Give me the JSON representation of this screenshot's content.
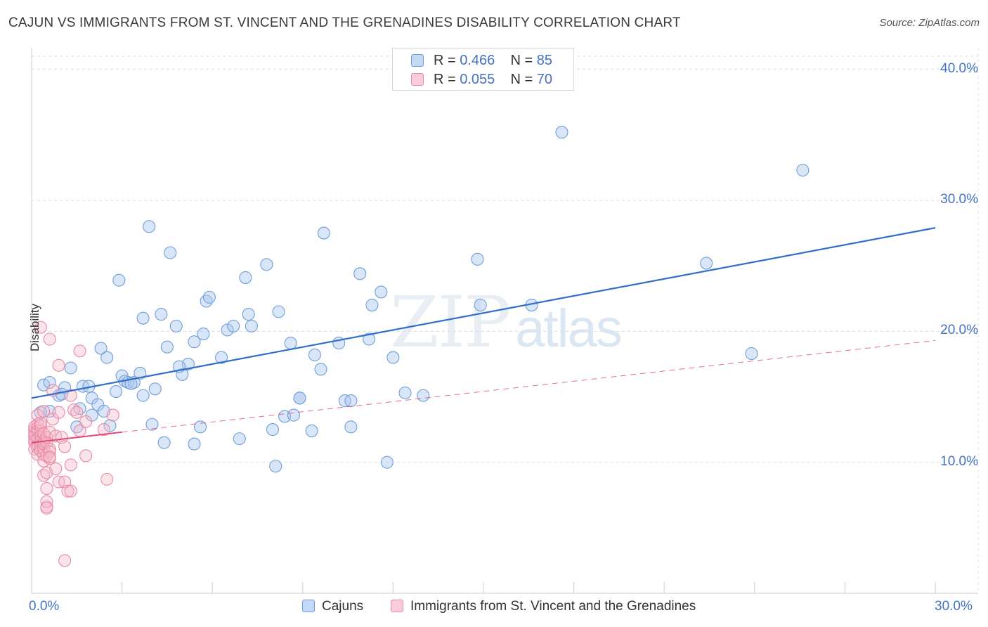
{
  "title": "CAJUN VS IMMIGRANTS FROM ST. VINCENT AND THE GRENADINES DISABILITY CORRELATION CHART",
  "source": "Source: ZipAtlas.com",
  "watermark": {
    "zip": "ZIP",
    "atlas": "atlas"
  },
  "legend": {
    "r_label": "R =",
    "n_label": "N =",
    "rows": [
      {
        "r": "0.466",
        "n": "85"
      },
      {
        "r": "0.055",
        "n": "70"
      }
    ]
  },
  "colors": {
    "cajun_fill": "#aac8f0",
    "cajun_stroke": "#6f9fd8",
    "cajun_line": "#2f6fc9",
    "svg_fill": "#f6b8cb",
    "svg_stroke": "#e88aa8",
    "svg_line": "#e0487a",
    "tick_text": "#4472c4",
    "grid": "#dddddd"
  },
  "chart_data": {
    "type": "scatter",
    "title": "CAJUN VS IMMIGRANTS FROM ST. VINCENT AND THE GRENADINES DISABILITY CORRELATION CHART",
    "xlabel": "",
    "ylabel": "Disability",
    "xlim": [
      0,
      30
    ],
    "ylim": [
      0,
      41
    ],
    "x_ticks": [
      0,
      30
    ],
    "x_tick_labels": [
      "0.0%",
      "30.0%"
    ],
    "y_ticks": [
      10,
      20,
      30,
      40
    ],
    "y_tick_labels": [
      "10.0%",
      "20.0%",
      "30.0%",
      "40.0%"
    ],
    "grid": true,
    "legend_position": "top-center",
    "series": [
      {
        "name": "Cajuns",
        "R": 0.466,
        "N": 85,
        "trend": {
          "x": [
            0,
            30
          ],
          "y": [
            14.9,
            27.9
          ],
          "style": "solid"
        },
        "points": [
          [
            0.4,
            15.9
          ],
          [
            0.6,
            13.9
          ],
          [
            0.6,
            16.1
          ],
          [
            0.9,
            15.1
          ],
          [
            1.1,
            15.7
          ],
          [
            1.3,
            17.2
          ],
          [
            1.5,
            12.7
          ],
          [
            1.6,
            14.1
          ],
          [
            1.7,
            15.8
          ],
          [
            1.9,
            15.8
          ],
          [
            2.0,
            13.6
          ],
          [
            2.0,
            14.9
          ],
          [
            2.2,
            14.4
          ],
          [
            2.3,
            18.7
          ],
          [
            2.4,
            13.9
          ],
          [
            2.5,
            18.0
          ],
          [
            2.6,
            12.8
          ],
          [
            2.8,
            15.4
          ],
          [
            2.9,
            23.9
          ],
          [
            3.0,
            16.6
          ],
          [
            3.1,
            16.2
          ],
          [
            3.2,
            16.1
          ],
          [
            3.4,
            16.1
          ],
          [
            3.6,
            16.8
          ],
          [
            3.7,
            21.0
          ],
          [
            3.7,
            15.1
          ],
          [
            3.9,
            28.0
          ],
          [
            4.0,
            12.9
          ],
          [
            4.1,
            15.6
          ],
          [
            4.3,
            21.3
          ],
          [
            4.4,
            11.5
          ],
          [
            4.5,
            18.8
          ],
          [
            4.6,
            26.0
          ],
          [
            4.8,
            20.4
          ],
          [
            5.0,
            16.7
          ],
          [
            5.2,
            17.5
          ],
          [
            5.4,
            11.4
          ],
          [
            5.4,
            19.2
          ],
          [
            5.6,
            12.7
          ],
          [
            5.7,
            19.8
          ],
          [
            5.8,
            22.3
          ],
          [
            5.9,
            22.6
          ],
          [
            6.3,
            18.0
          ],
          [
            6.5,
            20.1
          ],
          [
            6.7,
            20.4
          ],
          [
            6.9,
            11.8
          ],
          [
            7.1,
            24.1
          ],
          [
            7.2,
            21.3
          ],
          [
            7.3,
            20.4
          ],
          [
            7.8,
            25.1
          ],
          [
            8.0,
            12.5
          ],
          [
            8.1,
            9.7
          ],
          [
            8.2,
            21.5
          ],
          [
            8.4,
            13.5
          ],
          [
            8.6,
            19.1
          ],
          [
            8.7,
            13.6
          ],
          [
            8.9,
            14.9
          ],
          [
            8.9,
            14.9
          ],
          [
            9.3,
            12.4
          ],
          [
            9.4,
            18.2
          ],
          [
            9.6,
            17.1
          ],
          [
            9.7,
            27.5
          ],
          [
            10.2,
            19.1
          ],
          [
            10.4,
            14.7
          ],
          [
            10.6,
            14.7
          ],
          [
            10.6,
            12.7
          ],
          [
            10.9,
            24.4
          ],
          [
            11.2,
            19.4
          ],
          [
            11.3,
            22.0
          ],
          [
            11.6,
            23.0
          ],
          [
            11.8,
            10.0
          ],
          [
            12.0,
            18.0
          ],
          [
            12.4,
            15.3
          ],
          [
            13.0,
            15.1
          ],
          [
            14.8,
            25.5
          ],
          [
            14.9,
            22.0
          ],
          [
            16.6,
            22.0
          ],
          [
            17.6,
            35.2
          ],
          [
            22.4,
            25.2
          ],
          [
            23.9,
            18.3
          ],
          [
            25.6,
            32.3
          ],
          [
            0.3,
            13.8
          ],
          [
            1.0,
            15.2
          ],
          [
            3.3,
            16.0
          ],
          [
            4.9,
            17.3
          ]
        ]
      },
      {
        "name": "Immigrants from St. Vincent and the Grenadines",
        "R": 0.055,
        "N": 70,
        "trend_solid": {
          "x": [
            0,
            3.0
          ],
          "y": [
            11.5,
            12.3
          ]
        },
        "trend_dashed": {
          "x": [
            3.0,
            30
          ],
          "y": [
            12.3,
            19.3
          ]
        },
        "points": [
          [
            0.1,
            12.5
          ],
          [
            0.1,
            11.9
          ],
          [
            0.1,
            11.5
          ],
          [
            0.1,
            12.3
          ],
          [
            0.1,
            11.7
          ],
          [
            0.1,
            12.1
          ],
          [
            0.1,
            11.0
          ],
          [
            0.1,
            12.7
          ],
          [
            0.2,
            12.6
          ],
          [
            0.2,
            11.3
          ],
          [
            0.2,
            11.8
          ],
          [
            0.2,
            12.4
          ],
          [
            0.2,
            11.1
          ],
          [
            0.2,
            12.9
          ],
          [
            0.2,
            10.6
          ],
          [
            0.2,
            13.6
          ],
          [
            0.3,
            12.0
          ],
          [
            0.3,
            11.6
          ],
          [
            0.3,
            12.4
          ],
          [
            0.3,
            11.2
          ],
          [
            0.3,
            10.9
          ],
          [
            0.3,
            12.8
          ],
          [
            0.3,
            20.3
          ],
          [
            0.3,
            13.0
          ],
          [
            0.4,
            11.6
          ],
          [
            0.4,
            10.6
          ],
          [
            0.4,
            12.2
          ],
          [
            0.4,
            11.0
          ],
          [
            0.4,
            9.0
          ],
          [
            0.4,
            13.9
          ],
          [
            0.4,
            10.1
          ],
          [
            0.4,
            11.4
          ],
          [
            0.5,
            11.5
          ],
          [
            0.5,
            11.9
          ],
          [
            0.5,
            10.5
          ],
          [
            0.5,
            9.2
          ],
          [
            0.5,
            6.6
          ],
          [
            0.5,
            7.0
          ],
          [
            0.5,
            8.0
          ],
          [
            0.5,
            6.5
          ],
          [
            0.6,
            11.0
          ],
          [
            0.6,
            10.8
          ],
          [
            0.6,
            10.3
          ],
          [
            0.6,
            12.3
          ],
          [
            0.6,
            10.4
          ],
          [
            0.6,
            19.4
          ],
          [
            0.7,
            15.5
          ],
          [
            0.7,
            13.3
          ],
          [
            0.8,
            9.5
          ],
          [
            0.8,
            12.0
          ],
          [
            0.9,
            8.5
          ],
          [
            0.9,
            17.4
          ],
          [
            0.9,
            13.8
          ],
          [
            1.0,
            11.9
          ],
          [
            1.1,
            8.5
          ],
          [
            1.1,
            11.2
          ],
          [
            1.1,
            2.5
          ],
          [
            1.2,
            7.8
          ],
          [
            1.3,
            15.1
          ],
          [
            1.3,
            7.8
          ],
          [
            1.3,
            9.8
          ],
          [
            1.4,
            14.0
          ],
          [
            1.5,
            13.8
          ],
          [
            1.6,
            12.4
          ],
          [
            1.6,
            18.5
          ],
          [
            1.8,
            10.5
          ],
          [
            1.8,
            13.1
          ],
          [
            2.4,
            12.5
          ],
          [
            2.5,
            8.7
          ],
          [
            2.7,
            13.6
          ]
        ]
      }
    ]
  },
  "bottom_legend": [
    {
      "label": "Cajuns"
    },
    {
      "label": "Immigrants from St. Vincent and the Grenadines"
    }
  ]
}
